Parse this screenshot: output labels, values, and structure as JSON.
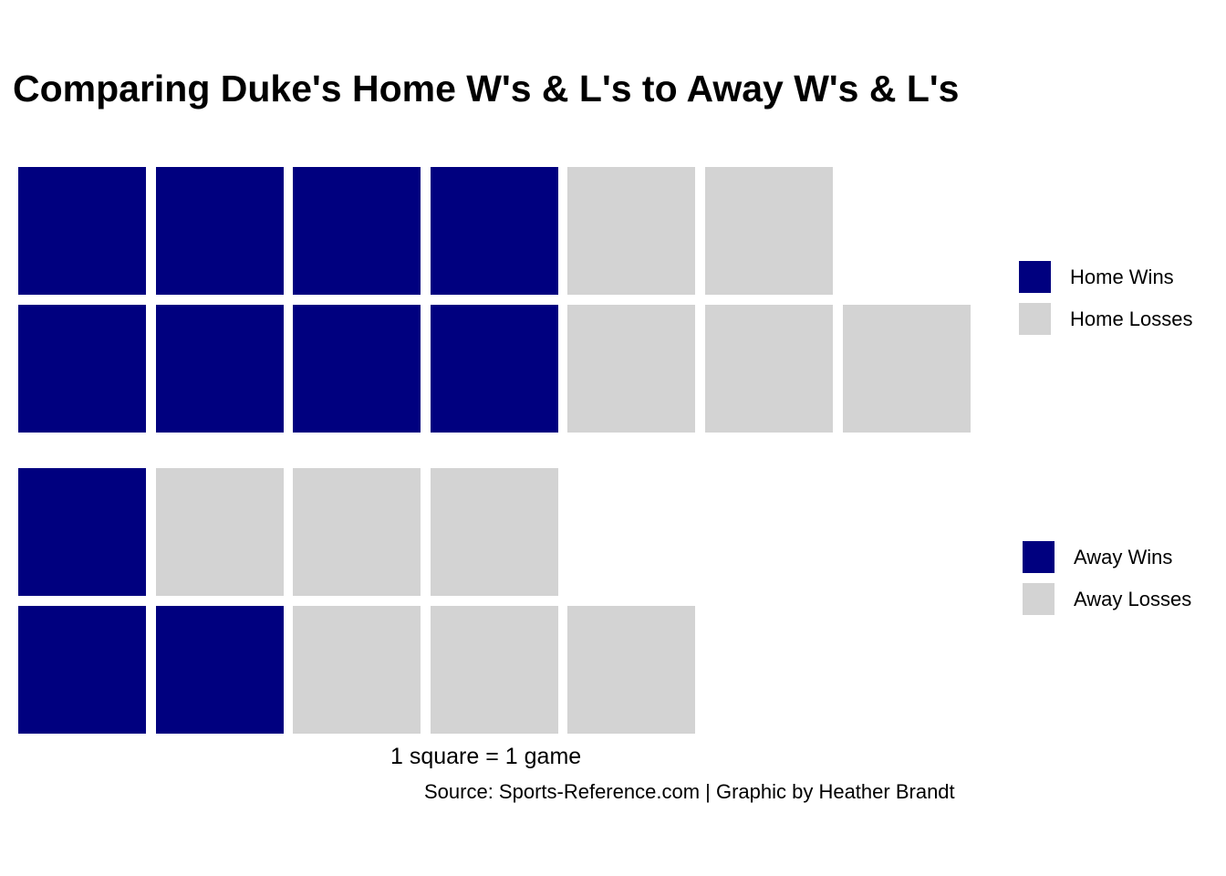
{
  "chart_data": [
    {
      "type": "waffle",
      "title": "Comparing Duke's Home W's & L's to Away W's & L's",
      "rows": 2,
      "series": [
        {
          "name": "Home Wins",
          "value": 8,
          "color": "#00007f"
        },
        {
          "name": "Home Losses",
          "value": 5,
          "color": "#d3d3d3"
        }
      ]
    },
    {
      "type": "waffle",
      "rows": 2,
      "series": [
        {
          "name": "Away Wins",
          "value": 3,
          "color": "#00007f"
        },
        {
          "name": "Away Losses",
          "value": 6,
          "color": "#d3d3d3"
        }
      ]
    }
  ],
  "title": "Comparing Duke's Home W's & L's to Away W's & L's",
  "legend_home": [
    "Home Wins",
    "Home Losses"
  ],
  "legend_away": [
    "Away Wins",
    "Away Losses"
  ],
  "xlabel": "1 square = 1 game",
  "caption": "Source: Sports-Reference.com | Graphic by Heather Brandt",
  "colors": {
    "win": "#00007f",
    "loss": "#d3d3d3"
  }
}
